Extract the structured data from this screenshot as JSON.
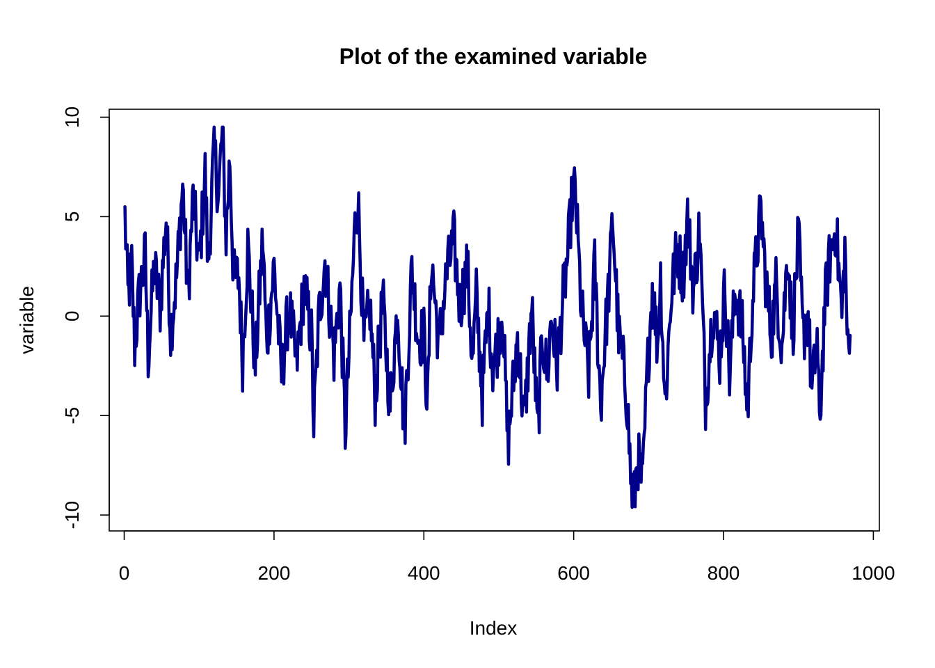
{
  "chart_data": {
    "type": "line",
    "title": "Plot of the examined variable",
    "xlabel": "Index",
    "ylabel": "variable",
    "xlim": [
      -20,
      1008
    ],
    "ylim": [
      -10.8,
      10.4
    ],
    "xticks": [
      0,
      200,
      400,
      600,
      800,
      1000
    ],
    "yticks": [
      -10,
      -5,
      0,
      5,
      10
    ],
    "xtick_labels": [
      "0",
      "200",
      "400",
      "600",
      "800",
      "1000"
    ],
    "ytick_labels": [
      "-10",
      "-5",
      "0",
      "5",
      "10"
    ],
    "grid": false,
    "legend": "none",
    "line_color": "#00008B",
    "n_points": 969,
    "keypoints": [
      [
        1,
        5.0
      ],
      [
        5,
        1.0
      ],
      [
        10,
        2.5
      ],
      [
        14,
        -1.5
      ],
      [
        20,
        1.0
      ],
      [
        28,
        3.0
      ],
      [
        32,
        -2.0
      ],
      [
        40,
        2.5
      ],
      [
        48,
        0.5
      ],
      [
        56,
        5.0
      ],
      [
        62,
        -0.8
      ],
      [
        70,
        2.0
      ],
      [
        78,
        6.6
      ],
      [
        85,
        1.0
      ],
      [
        92,
        6.0
      ],
      [
        100,
        2.5
      ],
      [
        108,
        7.2
      ],
      [
        112,
        2.4
      ],
      [
        120,
        8.5
      ],
      [
        126,
        6.0
      ],
      [
        131,
        9.5
      ],
      [
        136,
        4.0
      ],
      [
        141,
        8.0
      ],
      [
        146,
        1.8
      ],
      [
        153,
        2.0
      ],
      [
        158,
        -2.2
      ],
      [
        165,
        3.5
      ],
      [
        175,
        -2.5
      ],
      [
        185,
        4.0
      ],
      [
        190,
        -1.5
      ],
      [
        200,
        2.5
      ],
      [
        210,
        -3.0
      ],
      [
        220,
        0.5
      ],
      [
        230,
        -2.5
      ],
      [
        240,
        1.5
      ],
      [
        250,
        -1.0
      ],
      [
        253,
        -5.5
      ],
      [
        260,
        0.0
      ],
      [
        268,
        2.8
      ],
      [
        280,
        -2.0
      ],
      [
        288,
        1.5
      ],
      [
        295,
        -5.8
      ],
      [
        302,
        -0.5
      ],
      [
        308,
        4.5
      ],
      [
        312,
        6.0
      ],
      [
        320,
        -1.5
      ],
      [
        328,
        0.5
      ],
      [
        335,
        -4.0
      ],
      [
        345,
        0.8
      ],
      [
        355,
        -4.5
      ],
      [
        365,
        0.5
      ],
      [
        374,
        -5.8
      ],
      [
        384,
        2.5
      ],
      [
        392,
        -1.0
      ],
      [
        400,
        -1.0
      ],
      [
        405,
        -4.5
      ],
      [
        410,
        3.0
      ],
      [
        420,
        -1.5
      ],
      [
        430,
        2.0
      ],
      [
        440,
        3.8
      ],
      [
        448,
        0.5
      ],
      [
        458,
        2.5
      ],
      [
        465,
        -2.5
      ],
      [
        470,
        1.0
      ],
      [
        478,
        -4.0
      ],
      [
        486,
        0.5
      ],
      [
        492,
        -2.5
      ],
      [
        498,
        -1.5
      ],
      [
        505,
        0.5
      ],
      [
        512,
        -6.5
      ],
      [
        518,
        -4.0
      ],
      [
        525,
        -1.0
      ],
      [
        534,
        -5.5
      ],
      [
        544,
        0.5
      ],
      [
        552,
        -6.0
      ],
      [
        558,
        -1.0
      ],
      [
        565,
        -3.0
      ],
      [
        570,
        0.0
      ],
      [
        578,
        -2.5
      ],
      [
        586,
        1.0
      ],
      [
        592,
        3.0
      ],
      [
        598,
        6.0
      ],
      [
        602,
        6.3
      ],
      [
        610,
        0.5
      ],
      [
        620,
        -3.0
      ],
      [
        628,
        2.5
      ],
      [
        636,
        -4.5
      ],
      [
        642,
        -1.0
      ],
      [
        648,
        2.0
      ],
      [
        652,
        5.0
      ],
      [
        660,
        -1.0
      ],
      [
        668,
        -3.0
      ],
      [
        672,
        -4.5
      ],
      [
        676,
        -8.0
      ],
      [
        680,
        -9.8
      ],
      [
        685,
        -7.0
      ],
      [
        692,
        -8.5
      ],
      [
        698,
        -3.0
      ],
      [
        705,
        1.5
      ],
      [
        712,
        -1.5
      ],
      [
        716,
        2.0
      ],
      [
        722,
        -4.5
      ],
      [
        730,
        1.0
      ],
      [
        738,
        3.4
      ],
      [
        746,
        2.0
      ],
      [
        752,
        5.0
      ],
      [
        760,
        1.2
      ],
      [
        768,
        4.5
      ],
      [
        776,
        -4.2
      ],
      [
        786,
        0.5
      ],
      [
        795,
        -2.0
      ],
      [
        802,
        1.5
      ],
      [
        808,
        -3.0
      ],
      [
        816,
        1.5
      ],
      [
        826,
        -1.0
      ],
      [
        832,
        -5.0
      ],
      [
        838,
        0.5
      ],
      [
        845,
        3.5
      ],
      [
        850,
        5.3
      ],
      [
        856,
        2.0
      ],
      [
        864,
        -1.0
      ],
      [
        870,
        1.6
      ],
      [
        878,
        -1.5
      ],
      [
        886,
        3.5
      ],
      [
        892,
        -1.0
      ],
      [
        900,
        4.0
      ],
      [
        906,
        -1.0
      ],
      [
        913,
        0.0
      ],
      [
        918,
        -4.0
      ],
      [
        925,
        -1.0
      ],
      [
        928,
        -5.8
      ],
      [
        935,
        0.5
      ],
      [
        942,
        3.0
      ],
      [
        950,
        4.5
      ],
      [
        958,
        0.0
      ],
      [
        962,
        3.5
      ],
      [
        966,
        -2.0
      ],
      [
        969,
        -1.5
      ]
    ]
  }
}
